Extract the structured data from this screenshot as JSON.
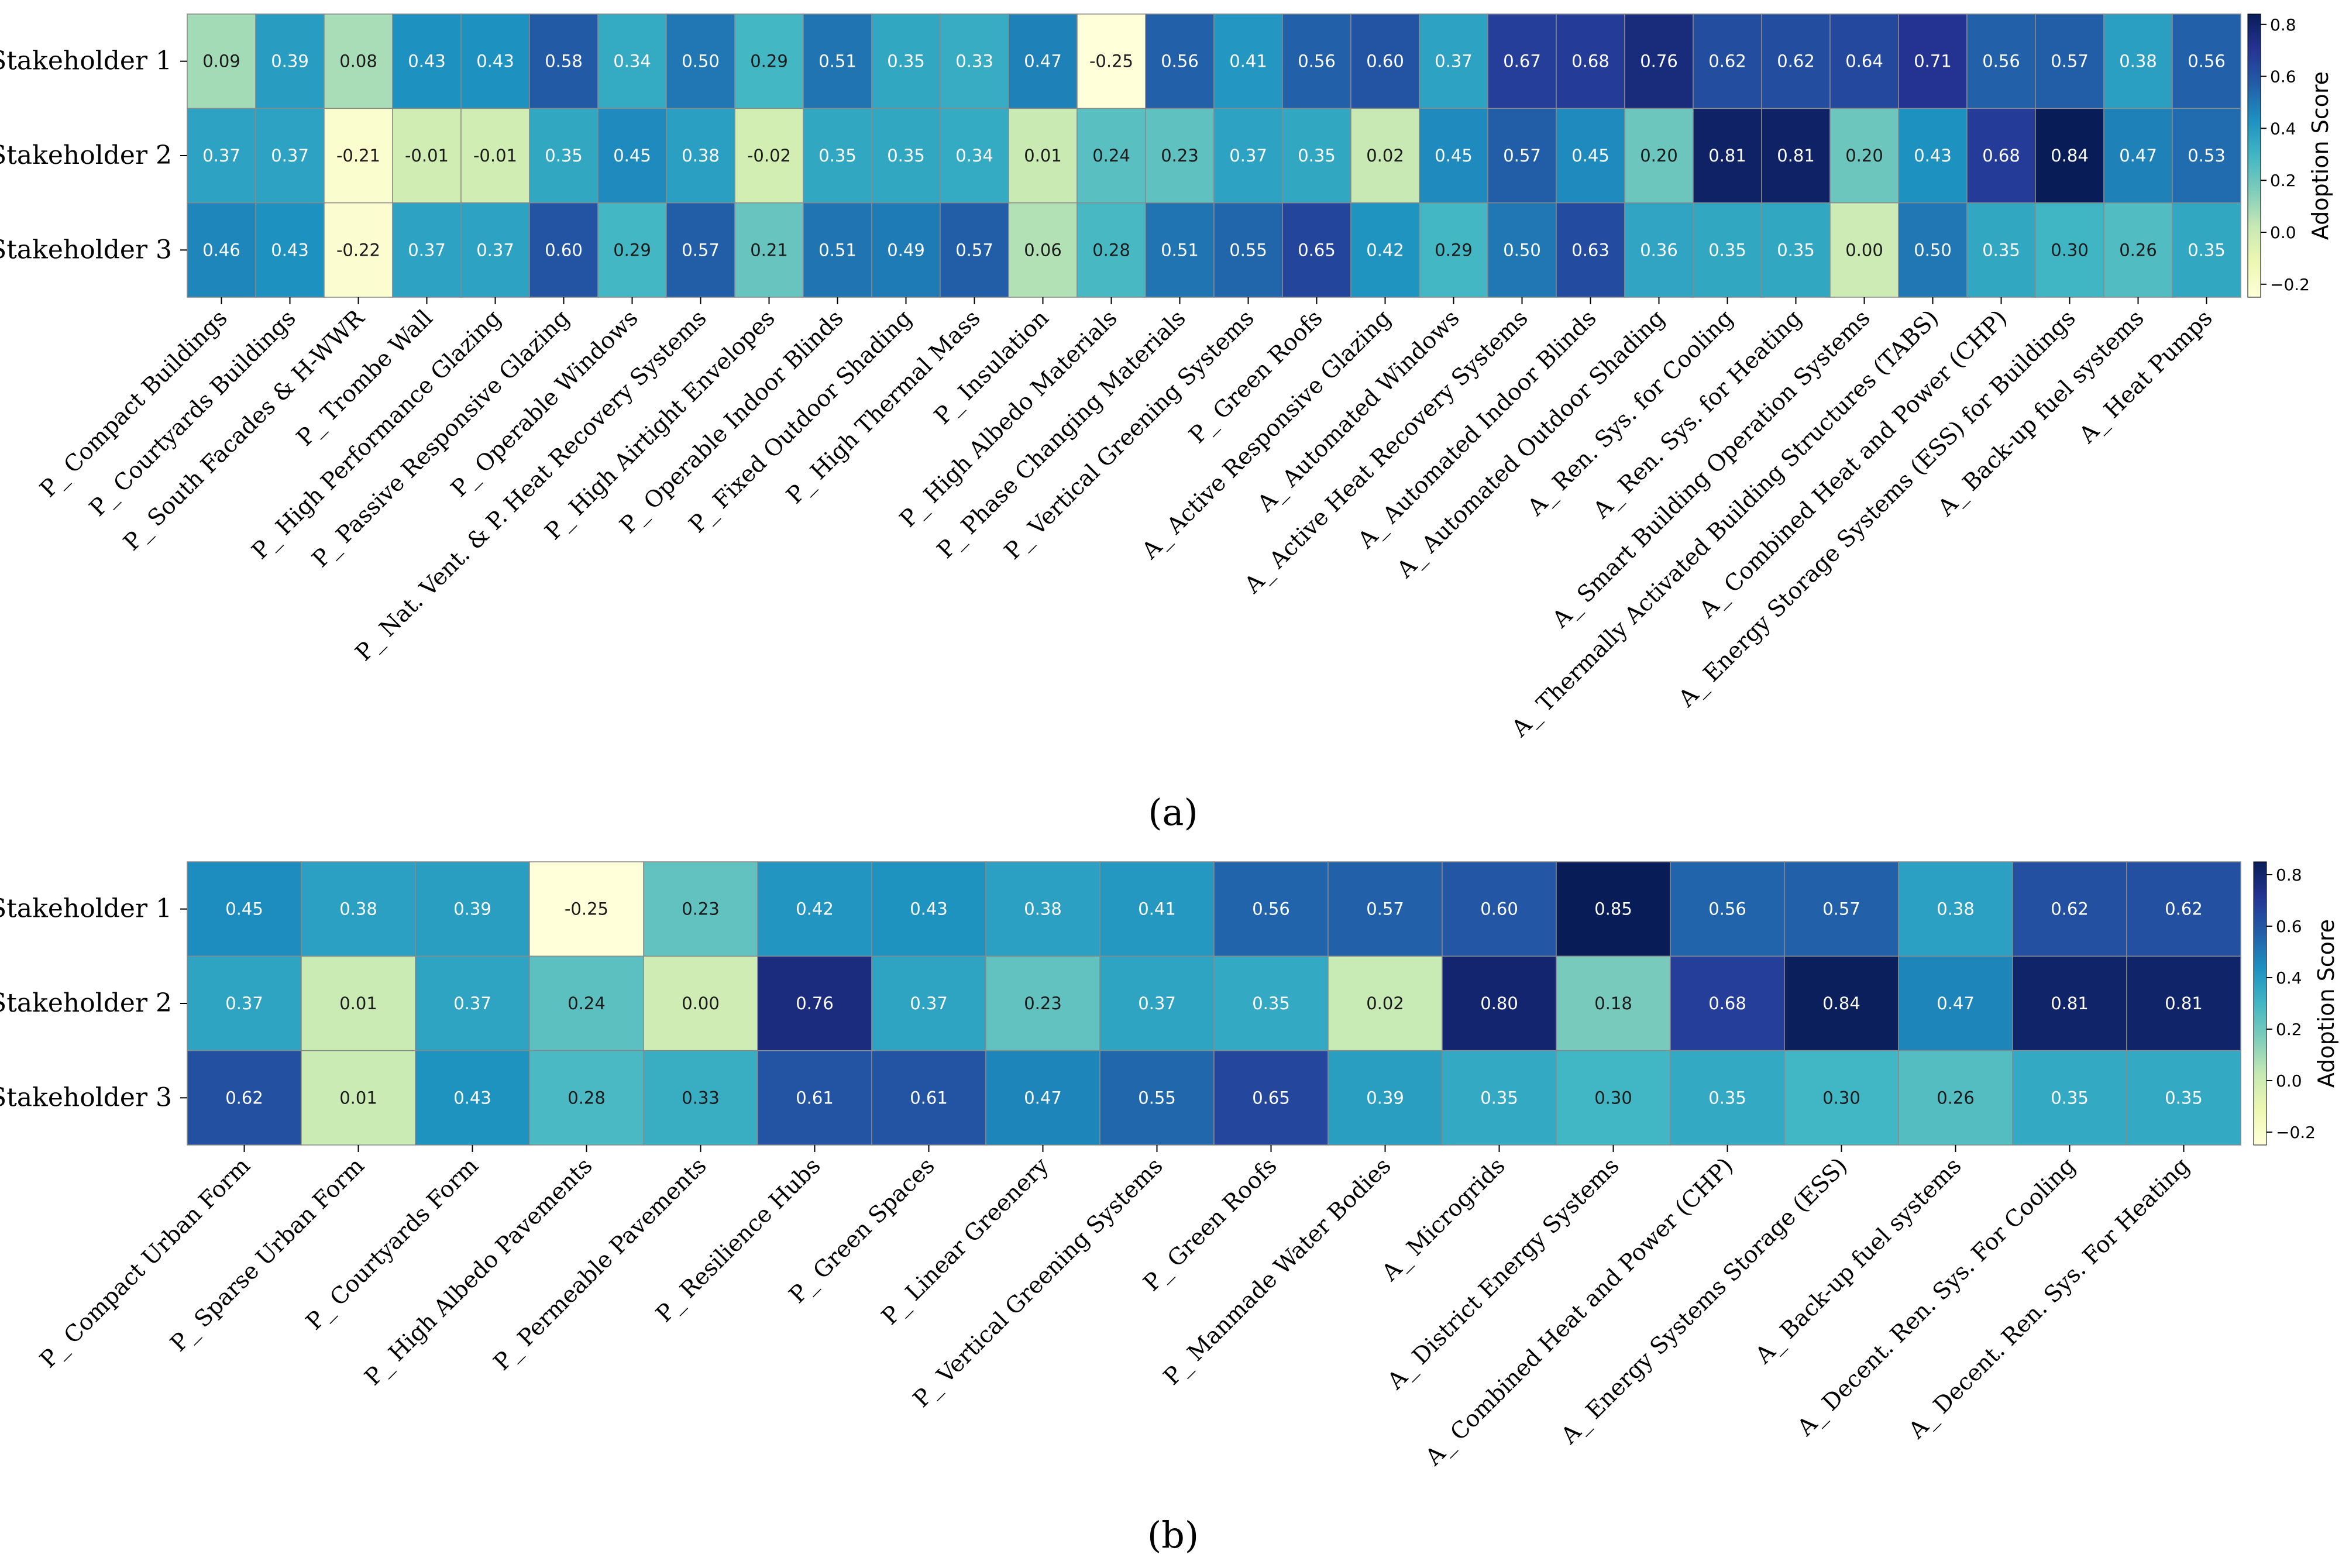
{
  "chart_data": [
    {
      "type": "heatmap",
      "panel_label": "a",
      "caption": "(a)",
      "rows": [
        "Stakeholder 1",
        "Stakeholder 2",
        "Stakeholder 3"
      ],
      "columns": [
        "P_ Compact Buildings",
        "P_ Courtyards Buildings",
        "P_ South Facades & H-WWR",
        "P_ Trombe Wall",
        "P_ High Performance Glazing",
        "P_ Passive Responsive Glazing",
        "P_ Operable Windows",
        "P_ Nat. Vent. & P. Heat Recovery Systems",
        "P_ High Airtight Envelopes",
        "P_ Operable Indoor Blinds",
        "P_ Fixed Outdoor Shading",
        "P_ High Thermal Mass",
        "P_ Insulation",
        "P_ High Albedo Materials",
        "P_ Phase Changing Materials",
        "P_ Vertical Greening Systems",
        "P_ Green Roofs",
        "A_ Active Responsive Glazing",
        "A_ Automated Windows",
        "A_ Active Heat Recovery Systems",
        "A_ Automated Indoor Blinds",
        "A_ Automated Outdoor Shading",
        "A_ Ren. Sys. for Cooling",
        "A_ Ren. Sys. for Heating",
        "A_ Smart Building Operation Systems",
        "A_ Thermally Activated Building Structures (TABS)",
        "A_ Combined Heat and Power (CHP)",
        "A_ Energy Storage Systems (ESS) for Buildings",
        "A_ Back-up fuel systems",
        "A_ Heat Pumps"
      ],
      "values": [
        [
          0.09,
          0.39,
          0.08,
          0.43,
          0.43,
          0.58,
          0.34,
          0.5,
          0.29,
          0.51,
          0.35,
          0.33,
          0.47,
          -0.25,
          0.56,
          0.41,
          0.56,
          0.6,
          0.37,
          0.67,
          0.68,
          0.76,
          0.62,
          0.62,
          0.64,
          0.71,
          0.56,
          0.57,
          0.38,
          0.56
        ],
        [
          0.37,
          0.37,
          -0.21,
          -0.01,
          -0.01,
          0.35,
          0.45,
          0.38,
          -0.02,
          0.35,
          0.35,
          0.34,
          0.01,
          0.24,
          0.23,
          0.37,
          0.35,
          0.02,
          0.45,
          0.57,
          0.45,
          0.2,
          0.81,
          0.81,
          0.2,
          0.43,
          0.68,
          0.84,
          0.47,
          0.53
        ],
        [
          0.46,
          0.43,
          -0.22,
          0.37,
          0.37,
          0.6,
          0.29,
          0.57,
          0.21,
          0.51,
          0.49,
          0.57,
          0.06,
          0.28,
          0.51,
          0.55,
          0.65,
          0.42,
          0.29,
          0.5,
          0.63,
          0.36,
          0.35,
          0.35,
          0.0,
          0.5,
          0.35,
          0.3,
          0.26,
          0.35
        ]
      ],
      "value_labels": [
        [
          "0.09",
          "0.39",
          "0.08",
          "0.43",
          "0.43",
          "0.58",
          "0.34",
          "0.50",
          "0.29",
          "0.51",
          "0.35",
          "0.33",
          "0.47",
          "-0.25",
          "0.56",
          "0.41",
          "0.56",
          "0.60",
          "0.37",
          "0.67",
          "0.68",
          "0.76",
          "0.62",
          "0.62",
          "0.64",
          "0.71",
          "0.56",
          "0.57",
          "0.38",
          "0.56"
        ],
        [
          "0.37",
          "0.37",
          "-0.21",
          "-0.01",
          "-0.01",
          "0.35",
          "0.45",
          "0.38",
          "-0.02",
          "0.35",
          "0.35",
          "0.34",
          "0.01",
          "0.24",
          "0.23",
          "0.37",
          "0.35",
          "0.02",
          "0.45",
          "0.57",
          "0.45",
          "0.20",
          "0.81",
          "0.81",
          "0.20",
          "0.43",
          "0.68",
          "0.84",
          "0.47",
          "0.53"
        ],
        [
          "0.46",
          "0.43",
          "-0.22",
          "0.37",
          "0.37",
          "0.60",
          "0.29",
          "0.57",
          "0.21",
          "0.51",
          "0.49",
          "0.57",
          "0.06",
          "0.28",
          "0.51",
          "0.55",
          "0.65",
          "0.42",
          "0.29",
          "0.50",
          "0.63",
          "0.36",
          "0.35",
          "0.35",
          "0.00",
          "0.50",
          "0.35",
          "0.30",
          "0.26",
          "0.35"
        ]
      ],
      "colorbar": {
        "label": "Adoption Score",
        "range": [
          -0.25,
          0.84
        ],
        "ticks": [
          -0.2,
          0.0,
          0.2,
          0.4,
          0.6,
          0.8
        ],
        "tick_labels": [
          "−0.2",
          "0.0",
          "0.2",
          "0.4",
          "0.6",
          "0.8"
        ]
      },
      "colormap": "YlGnBu"
    },
    {
      "type": "heatmap",
      "panel_label": "b",
      "caption": "(b)",
      "rows": [
        "Stakeholder 1",
        "Stakeholder 2",
        "Stakeholder 3"
      ],
      "columns": [
        "P_ Compact Urban Form",
        "P_ Sparse Urban Form",
        "P_ Courtyards Form",
        "P_ High Albedo Pavements",
        "P_ Permeable Pavements",
        "P_ Resilience Hubs",
        "P_ Green Spaces",
        "P_ Linear Greenery",
        "P_ Vertical Greening Systems",
        "P_ Green Roofs",
        "P_ Manmade Water Bodies",
        "A_ Microgrids",
        "A_ District Energy Systems",
        "A_ Combined Heat and Power (CHP)",
        "A_ Energy Systems Storage (ESS)",
        "A_ Back-up fuel systems",
        "A_ Decent. Ren. Sys. For Cooling",
        "A_ Decent. Ren. Sys. For Heating"
      ],
      "values": [
        [
          0.45,
          0.38,
          0.39,
          -0.25,
          0.23,
          0.42,
          0.43,
          0.38,
          0.41,
          0.56,
          0.57,
          0.6,
          0.85,
          0.56,
          0.57,
          0.38,
          0.62,
          0.62
        ],
        [
          0.37,
          0.01,
          0.37,
          0.24,
          0.0,
          0.76,
          0.37,
          0.23,
          0.37,
          0.35,
          0.02,
          0.8,
          0.18,
          0.68,
          0.84,
          0.47,
          0.81,
          0.81
        ],
        [
          0.62,
          0.01,
          0.43,
          0.28,
          0.33,
          0.61,
          0.61,
          0.47,
          0.55,
          0.65,
          0.39,
          0.35,
          0.3,
          0.35,
          0.3,
          0.26,
          0.35,
          0.35
        ]
      ],
      "value_labels": [
        [
          "0.45",
          "0.38",
          "0.39",
          "-0.25",
          "0.23",
          "0.42",
          "0.43",
          "0.38",
          "0.41",
          "0.56",
          "0.57",
          "0.60",
          "0.85",
          "0.56",
          "0.57",
          "0.38",
          "0.62",
          "0.62"
        ],
        [
          "0.37",
          "0.01",
          "0.37",
          "0.24",
          "0.00",
          "0.76",
          "0.37",
          "0.23",
          "0.37",
          "0.35",
          "0.02",
          "0.80",
          "0.18",
          "0.68",
          "0.84",
          "0.47",
          "0.81",
          "0.81"
        ],
        [
          "0.62",
          "0.01",
          "0.43",
          "0.28",
          "0.33",
          "0.61",
          "0.61",
          "0.47",
          "0.55",
          "0.65",
          "0.39",
          "0.35",
          "0.30",
          "0.35",
          "0.30",
          "0.26",
          "0.35",
          "0.35"
        ]
      ],
      "colorbar": {
        "label": "Adoption Score",
        "range": [
          -0.25,
          0.85
        ],
        "ticks": [
          -0.2,
          0.0,
          0.2,
          0.4,
          0.6,
          0.8
        ],
        "tick_labels": [
          "−0.2",
          "0.0",
          "0.2",
          "0.4",
          "0.6",
          "0.8"
        ]
      },
      "colormap": "YlGnBu"
    }
  ]
}
